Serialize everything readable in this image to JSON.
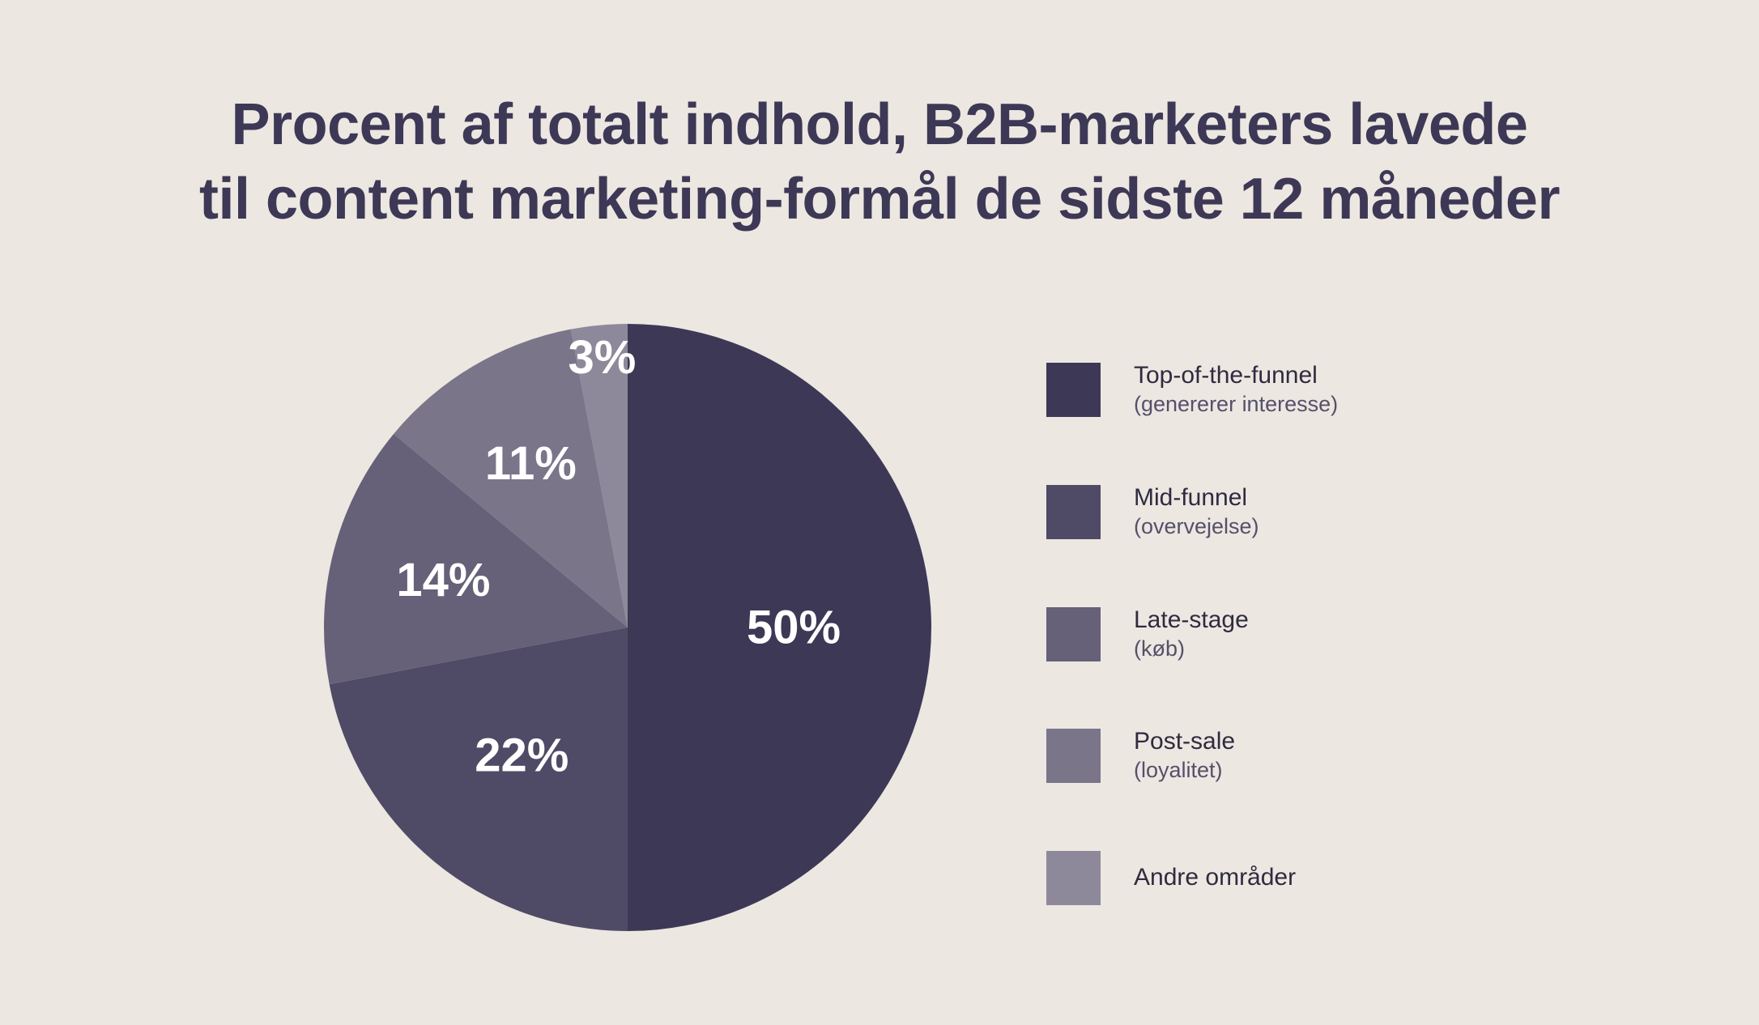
{
  "title_lines": [
    "Procent af totalt indhold, B2B-marketers lavede",
    "til content marketing-formål de sidste 12 måneder"
  ],
  "chart_data": {
    "type": "pie",
    "title": "Procent af totalt indhold, B2B-marketers lavede til content marketing-formål de sidste 12 måneder",
    "labels": [
      "Top-of-the-funnel",
      "Mid-funnel",
      "Late-stage",
      "Post-sale",
      "Andre områder"
    ],
    "sublabels": [
      "(genererer interesse)",
      "(overvejelse)",
      "(køb)",
      "(loyalitet)",
      ""
    ],
    "values": [
      50,
      22,
      14,
      11,
      3
    ],
    "value_labels": [
      "50%",
      "22%",
      "14%",
      "11%",
      "3%"
    ],
    "colors": [
      "#3d3855",
      "#4f4a66",
      "#666178",
      "#7a7589",
      "#8e899a"
    ],
    "legend_position": "right"
  }
}
